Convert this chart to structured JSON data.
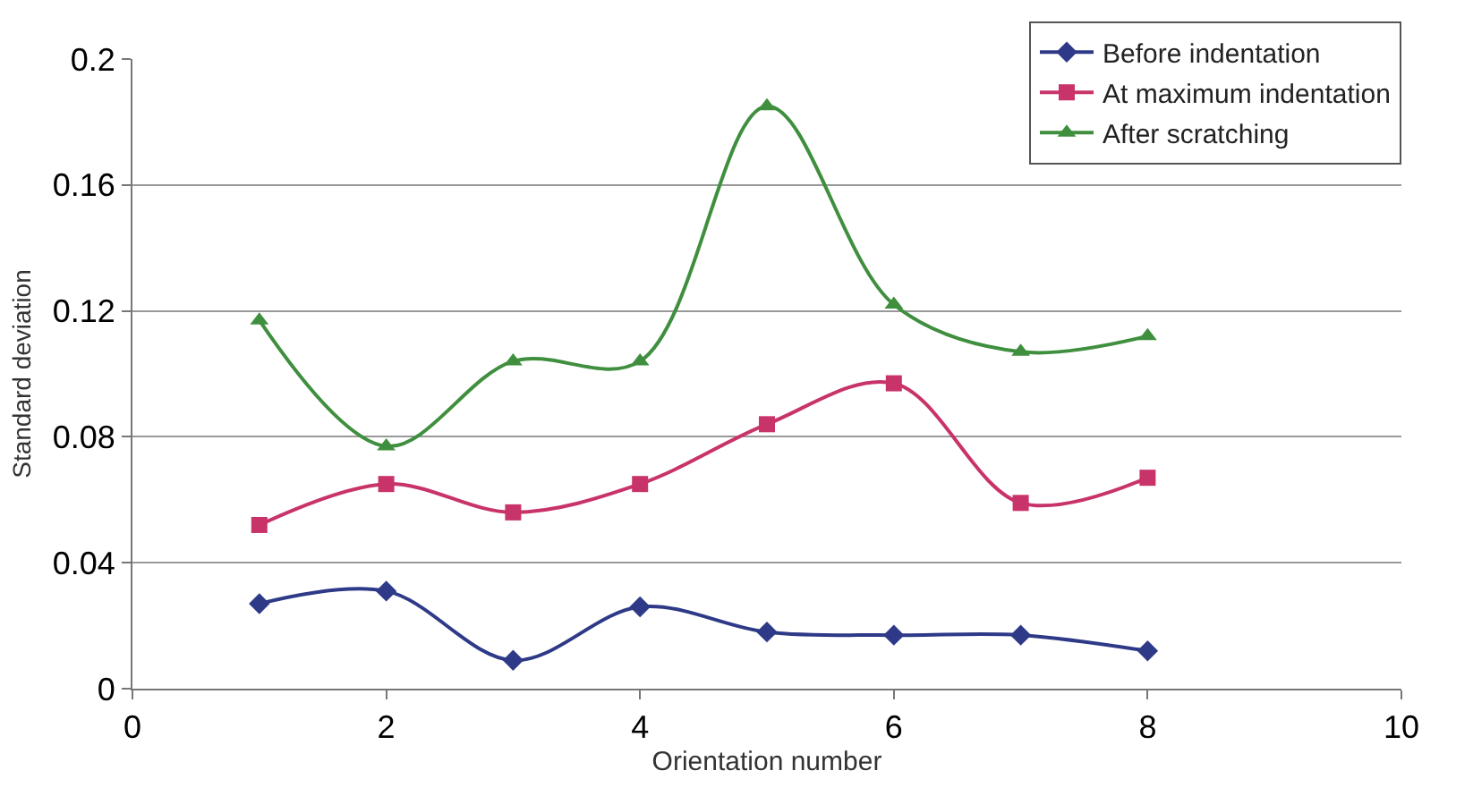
{
  "chart_data": {
    "type": "line",
    "xlabel": "Orientation number",
    "ylabel": "Standard deviation",
    "x": [
      1,
      2,
      3,
      4,
      5,
      6,
      7,
      8
    ],
    "series": [
      {
        "name": "Before indentation",
        "color": "#2e3a87",
        "marker": "diamond",
        "values": [
          0.027,
          0.031,
          0.009,
          0.026,
          0.018,
          0.017,
          0.017,
          0.012
        ]
      },
      {
        "name": "At maximum indentation",
        "color": "#c8336a",
        "marker": "square",
        "values": [
          0.052,
          0.065,
          0.056,
          0.065,
          0.084,
          0.097,
          0.059,
          0.067
        ]
      },
      {
        "name": "After scratching",
        "color": "#3f8f3f",
        "marker": "triangle",
        "values": [
          0.117,
          0.077,
          0.104,
          0.104,
          0.185,
          0.122,
          0.107,
          0.112
        ]
      }
    ],
    "xlim": [
      0,
      10
    ],
    "xticks": [
      0,
      2,
      4,
      6,
      8,
      10
    ],
    "ylim": [
      0,
      0.2
    ],
    "yticks": [
      0,
      0.04,
      0.08,
      0.12,
      0.16,
      0.2
    ],
    "grid": "y",
    "legend": "top right",
    "line_style": "solid"
  }
}
